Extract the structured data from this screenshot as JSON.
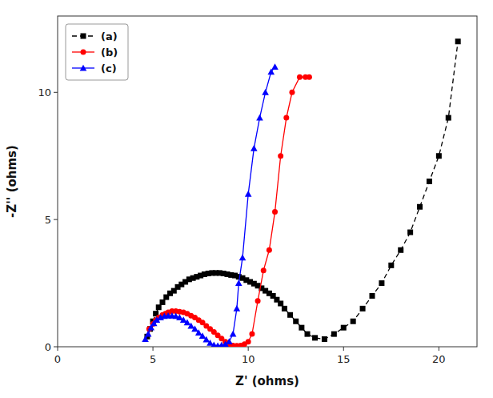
{
  "chart_data": {
    "type": "line",
    "xlabel": "Z' (ohms)",
    "ylabel": "-Z'' (ohms)",
    "xlim": [
      0,
      22
    ],
    "ylim": [
      0,
      13
    ],
    "xticks": [
      0,
      5,
      10,
      15,
      20
    ],
    "yticks": [
      0,
      5,
      10
    ],
    "grid": false,
    "legend": "upper left",
    "series": [
      {
        "name": "(a)",
        "color": "black",
        "marker": "square",
        "line_style": "dashed",
        "x": [
          4.7,
          4.85,
          5.0,
          5.15,
          5.3,
          5.5,
          5.7,
          5.9,
          6.1,
          6.3,
          6.5,
          6.7,
          6.9,
          7.1,
          7.3,
          7.5,
          7.7,
          7.9,
          8.1,
          8.3,
          8.5,
          8.7,
          8.9,
          9.1,
          9.3,
          9.5,
          9.7,
          9.9,
          10.1,
          10.3,
          10.5,
          10.7,
          10.9,
          11.1,
          11.3,
          11.5,
          11.7,
          11.9,
          12.2,
          12.5,
          12.8,
          13.1,
          13.5,
          14.0,
          14.5,
          15.0,
          15.5,
          16.0,
          16.5,
          17.0,
          17.5,
          18.0,
          18.5,
          19.0,
          19.5,
          20.0,
          20.5,
          21.0
        ],
        "values": [
          0.4,
          0.7,
          1.0,
          1.3,
          1.55,
          1.75,
          1.95,
          2.1,
          2.2,
          2.35,
          2.45,
          2.55,
          2.65,
          2.7,
          2.75,
          2.8,
          2.85,
          2.88,
          2.9,
          2.9,
          2.9,
          2.88,
          2.85,
          2.82,
          2.8,
          2.75,
          2.7,
          2.62,
          2.55,
          2.48,
          2.4,
          2.3,
          2.2,
          2.1,
          2.0,
          1.85,
          1.7,
          1.5,
          1.25,
          1.0,
          0.75,
          0.5,
          0.35,
          0.3,
          0.5,
          0.75,
          1.0,
          1.5,
          2.0,
          2.5,
          3.2,
          3.8,
          4.5,
          5.5,
          6.5,
          7.5,
          9.0,
          12.0
        ]
      },
      {
        "name": "(b)",
        "color": "red",
        "marker": "circle",
        "line_style": "solid",
        "x": [
          4.8,
          5.0,
          5.15,
          5.3,
          5.5,
          5.65,
          5.8,
          6.0,
          6.2,
          6.4,
          6.6,
          6.8,
          7.0,
          7.2,
          7.4,
          7.6,
          7.8,
          8.0,
          8.2,
          8.4,
          8.6,
          8.8,
          9.0,
          9.2,
          9.4,
          9.6,
          9.8,
          10.0,
          10.2,
          10.5,
          10.8,
          11.1,
          11.4,
          11.7,
          12.0,
          12.3,
          12.7,
          13.0,
          13.2
        ],
        "values": [
          0.7,
          0.9,
          1.05,
          1.15,
          1.25,
          1.3,
          1.35,
          1.4,
          1.4,
          1.38,
          1.35,
          1.3,
          1.22,
          1.15,
          1.05,
          0.95,
          0.82,
          0.7,
          0.58,
          0.45,
          0.32,
          0.2,
          0.1,
          0.05,
          0.04,
          0.05,
          0.1,
          0.2,
          0.5,
          1.8,
          3.0,
          3.8,
          5.3,
          7.5,
          9.0,
          10.0,
          10.6,
          10.6,
          10.6
        ]
      },
      {
        "name": "(c)",
        "color": "blue",
        "marker": "triangle",
        "line_style": "solid",
        "x": [
          4.6,
          4.75,
          4.9,
          5.05,
          5.2,
          5.4,
          5.6,
          5.8,
          6.0,
          6.2,
          6.4,
          6.6,
          6.8,
          7.0,
          7.2,
          7.4,
          7.6,
          7.8,
          8.0,
          8.2,
          8.4,
          8.6,
          8.8,
          9.0,
          9.2,
          9.4,
          9.5,
          9.7,
          10.0,
          10.3,
          10.6,
          10.9,
          11.2,
          11.4
        ],
        "values": [
          0.3,
          0.5,
          0.75,
          0.92,
          1.05,
          1.15,
          1.2,
          1.22,
          1.22,
          1.2,
          1.15,
          1.05,
          0.95,
          0.82,
          0.7,
          0.55,
          0.42,
          0.28,
          0.15,
          0.07,
          0.04,
          0.06,
          0.1,
          0.2,
          0.5,
          1.5,
          2.5,
          3.5,
          6.0,
          7.8,
          9.0,
          10.0,
          10.8,
          11.0
        ]
      }
    ]
  }
}
